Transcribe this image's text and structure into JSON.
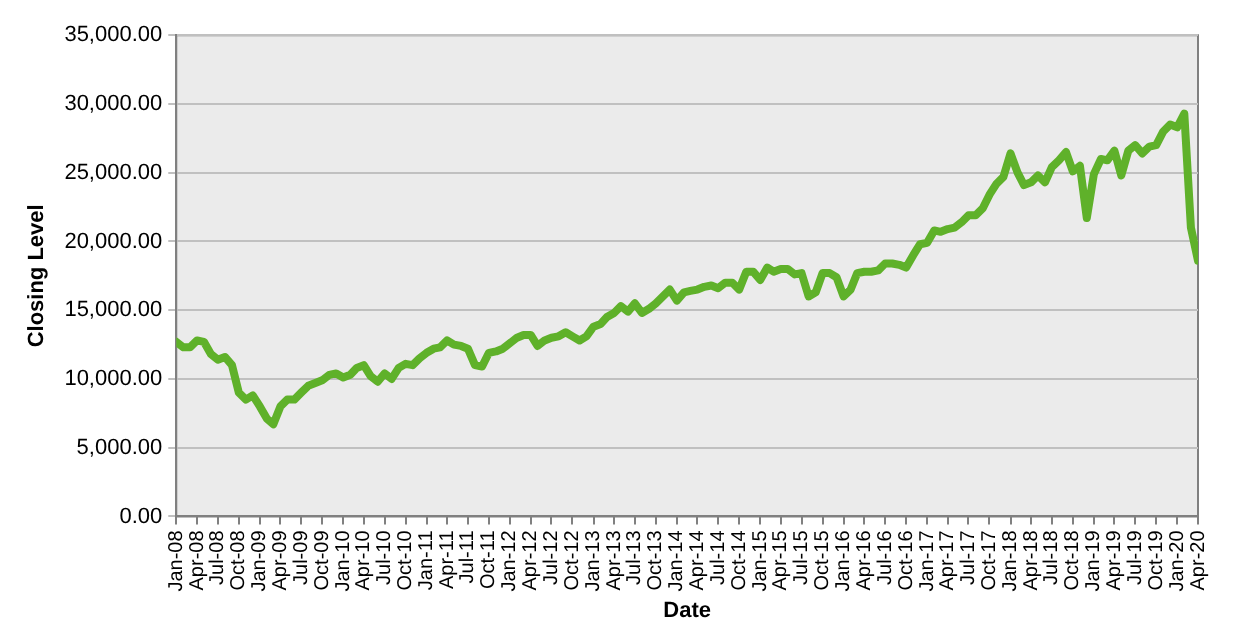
{
  "chart_data": {
    "type": "line",
    "xlabel": "Date",
    "ylabel": "Closing Level",
    "x": [
      "2008-01",
      "2008-02",
      "2008-03",
      "2008-04",
      "2008-05",
      "2008-06",
      "2008-07",
      "2008-08",
      "2008-09",
      "2008-10",
      "2008-11",
      "2008-12",
      "2009-01",
      "2009-02",
      "2009-03",
      "2009-04",
      "2009-05",
      "2009-06",
      "2009-07",
      "2009-08",
      "2009-09",
      "2009-10",
      "2009-11",
      "2009-12",
      "2010-01",
      "2010-02",
      "2010-03",
      "2010-04",
      "2010-05",
      "2010-06",
      "2010-07",
      "2010-08",
      "2010-09",
      "2010-10",
      "2010-11",
      "2010-12",
      "2011-01",
      "2011-02",
      "2011-03",
      "2011-04",
      "2011-05",
      "2011-06",
      "2011-07",
      "2011-08",
      "2011-09",
      "2011-10",
      "2011-11",
      "2011-12",
      "2012-01",
      "2012-02",
      "2012-03",
      "2012-04",
      "2012-05",
      "2012-06",
      "2012-07",
      "2012-08",
      "2012-09",
      "2012-10",
      "2012-11",
      "2012-12",
      "2013-01",
      "2013-02",
      "2013-03",
      "2013-04",
      "2013-05",
      "2013-06",
      "2013-07",
      "2013-08",
      "2013-09",
      "2013-10",
      "2013-11",
      "2013-12",
      "2014-01",
      "2014-02",
      "2014-03",
      "2014-04",
      "2014-05",
      "2014-06",
      "2014-07",
      "2014-08",
      "2014-09",
      "2014-10",
      "2014-11",
      "2014-12",
      "2015-01",
      "2015-02",
      "2015-03",
      "2015-04",
      "2015-05",
      "2015-06",
      "2015-07",
      "2015-08",
      "2015-09",
      "2015-10",
      "2015-11",
      "2015-12",
      "2016-01",
      "2016-02",
      "2016-03",
      "2016-04",
      "2016-05",
      "2016-06",
      "2016-07",
      "2016-08",
      "2016-09",
      "2016-10",
      "2016-11",
      "2016-12",
      "2017-01",
      "2017-02",
      "2017-03",
      "2017-04",
      "2017-05",
      "2017-06",
      "2017-07",
      "2017-08",
      "2017-09",
      "2017-10",
      "2017-11",
      "2017-12",
      "2018-01",
      "2018-02",
      "2018-03",
      "2018-04",
      "2018-05",
      "2018-06",
      "2018-07",
      "2018-08",
      "2018-09",
      "2018-10",
      "2018-11",
      "2018-12",
      "2019-01",
      "2019-02",
      "2019-03",
      "2019-04",
      "2019-05",
      "2019-06",
      "2019-07",
      "2019-08",
      "2019-09",
      "2019-10",
      "2019-11",
      "2019-12",
      "2020-01",
      "2020-02",
      "2020-03",
      "2020-04"
    ],
    "series": [
      {
        "color": "#5fb12a",
        "values": [
          12700,
          12300,
          12300,
          12800,
          12700,
          11800,
          11400,
          11600,
          11000,
          9000,
          8500,
          8800,
          8000,
          7100,
          6700,
          8000,
          8500,
          8500,
          9000,
          9500,
          9700,
          9900,
          10300,
          10400,
          10100,
          10300,
          10800,
          11000,
          10200,
          9800,
          10400,
          10000,
          10800,
          11100,
          11000,
          11500,
          11900,
          12200,
          12300,
          12800,
          12500,
          12400,
          12200,
          11000,
          10900,
          11900,
          12000,
          12200,
          12600,
          13000,
          13200,
          13200,
          12400,
          12800,
          13000,
          13100,
          13400,
          13100,
          12800,
          13100,
          13800,
          14000,
          14500,
          14800,
          15300,
          14900,
          15500,
          14800,
          15100,
          15500,
          16000,
          16500,
          15700,
          16300,
          16400,
          16500,
          16700,
          16800,
          16600,
          17000,
          17000,
          16500,
          17800,
          17800,
          17200,
          18100,
          17800,
          18000,
          18000,
          17600,
          17700,
          16000,
          16300,
          17700,
          17700,
          17400,
          16000,
          16500,
          17700,
          17800,
          17800,
          17900,
          18400,
          18400,
          18300,
          18100,
          19000,
          19800,
          19900,
          20800,
          20700,
          20900,
          21000,
          21400,
          21900,
          21900,
          22400,
          23400,
          24200,
          24700,
          26400,
          25000,
          24100,
          24300,
          24800,
          24300,
          25400,
          25900,
          26500,
          25100,
          25500,
          21700,
          24900,
          26000,
          25900,
          26600,
          24800,
          26600,
          27000,
          26400,
          26900,
          27000,
          28000,
          28500,
          28300,
          29300,
          21000,
          18600
        ]
      }
    ],
    "xlim": [
      "2008-01",
      "2020-04"
    ],
    "xticks": [
      {
        "value": "2008-01",
        "label": "Jan-08"
      },
      {
        "value": "2008-04",
        "label": "Apr-08"
      },
      {
        "value": "2008-07",
        "label": "Jul-08"
      },
      {
        "value": "2008-10",
        "label": "Oct-08"
      },
      {
        "value": "2009-01",
        "label": "Jan-09"
      },
      {
        "value": "2009-04",
        "label": "Apr-09"
      },
      {
        "value": "2009-07",
        "label": "Jul-09"
      },
      {
        "value": "2009-10",
        "label": "Oct-09"
      },
      {
        "value": "2010-01",
        "label": "Jan-10"
      },
      {
        "value": "2010-04",
        "label": "Apr-10"
      },
      {
        "value": "2010-07",
        "label": "Jul-10"
      },
      {
        "value": "2010-10",
        "label": "Oct-10"
      },
      {
        "value": "2011-01",
        "label": "Jan-11"
      },
      {
        "value": "2011-04",
        "label": "Apr-11"
      },
      {
        "value": "2011-07",
        "label": "Jul-11"
      },
      {
        "value": "2011-10",
        "label": "Oct-11"
      },
      {
        "value": "2012-01",
        "label": "Jan-12"
      },
      {
        "value": "2012-04",
        "label": "Apr-12"
      },
      {
        "value": "2012-07",
        "label": "Jul-12"
      },
      {
        "value": "2012-10",
        "label": "Oct-12"
      },
      {
        "value": "2013-01",
        "label": "Jan-13"
      },
      {
        "value": "2013-04",
        "label": "Apr-13"
      },
      {
        "value": "2013-07",
        "label": "Jul-13"
      },
      {
        "value": "2013-10",
        "label": "Oct-13"
      },
      {
        "value": "2014-01",
        "label": "Jan-14"
      },
      {
        "value": "2014-04",
        "label": "Apr-14"
      },
      {
        "value": "2014-07",
        "label": "Jul-14"
      },
      {
        "value": "2014-10",
        "label": "Oct-14"
      },
      {
        "value": "2015-01",
        "label": "Jan-15"
      },
      {
        "value": "2015-04",
        "label": "Apr-15"
      },
      {
        "value": "2015-07",
        "label": "Jul-15"
      },
      {
        "value": "2015-10",
        "label": "Oct-15"
      },
      {
        "value": "2016-01",
        "label": "Jan-16"
      },
      {
        "value": "2016-04",
        "label": "Apr-16"
      },
      {
        "value": "2016-07",
        "label": "Jul-16"
      },
      {
        "value": "2016-10",
        "label": "Oct-16"
      },
      {
        "value": "2017-01",
        "label": "Jan-17"
      },
      {
        "value": "2017-04",
        "label": "Apr-17"
      },
      {
        "value": "2017-07",
        "label": "Jul-17"
      },
      {
        "value": "2017-10",
        "label": "Oct-17"
      },
      {
        "value": "2018-01",
        "label": "Jan-18"
      },
      {
        "value": "2018-04",
        "label": "Apr-18"
      },
      {
        "value": "2018-07",
        "label": "Jul-18"
      },
      {
        "value": "2018-10",
        "label": "Oct-18"
      },
      {
        "value": "2019-01",
        "label": "Jan-19"
      },
      {
        "value": "2019-04",
        "label": "Apr-19"
      },
      {
        "value": "2019-07",
        "label": "Jul-19"
      },
      {
        "value": "2019-10",
        "label": "Oct-19"
      },
      {
        "value": "2020-01",
        "label": "Jan-20"
      },
      {
        "value": "2020-04",
        "label": "Apr-20"
      }
    ],
    "ylim": [
      0,
      35000
    ],
    "yticks": [
      {
        "value": 0,
        "label": "0.00"
      },
      {
        "value": 5000,
        "label": "5,000.00"
      },
      {
        "value": 10000,
        "label": "10,000.00"
      },
      {
        "value": 15000,
        "label": "15,000.00"
      },
      {
        "value": 20000,
        "label": "20,000.00"
      },
      {
        "value": 25000,
        "label": "25,000.00"
      },
      {
        "value": 30000,
        "label": "30,000.00"
      },
      {
        "value": 35000,
        "label": "35,000.00"
      }
    ],
    "grid": "y",
    "legend": false,
    "marker": "none",
    "line_style": "solid"
  }
}
